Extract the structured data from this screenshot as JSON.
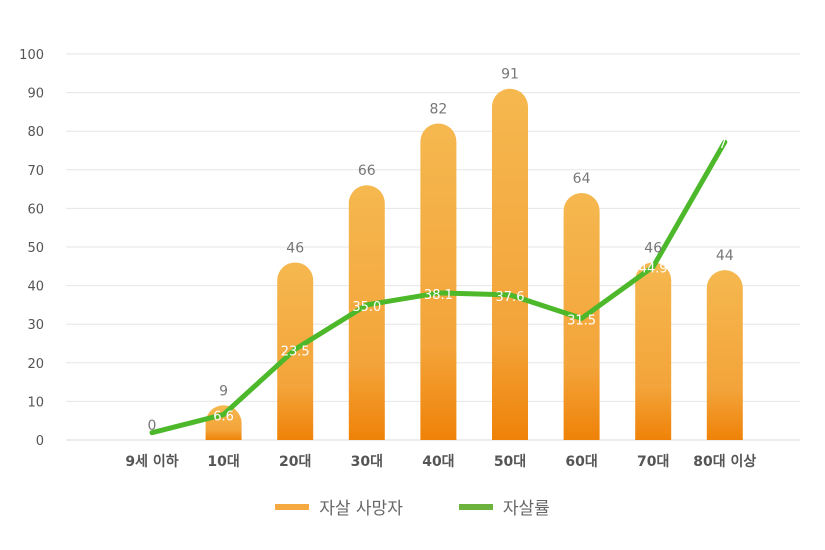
{
  "chart_data": {
    "type": "bar",
    "categories": [
      "9세 이하",
      "10대",
      "20대",
      "30대",
      "40대",
      "50대",
      "60대",
      "70대",
      "80대 이상"
    ],
    "ylim": [
      0,
      100
    ],
    "yticks": [
      0,
      10,
      20,
      30,
      40,
      50,
      60,
      70,
      80,
      90,
      100
    ],
    "grid": true,
    "legend_placement": "bottom",
    "series": [
      {
        "name": "자살 사망자",
        "type": "bar",
        "color": "#f5a623",
        "values": [
          0,
          9,
          46,
          66,
          82,
          91,
          64,
          46,
          44
        ],
        "labels": [
          "0",
          "9",
          "46",
          "66",
          "82",
          "91",
          "64",
          "46",
          "44"
        ]
      },
      {
        "name": "자살률",
        "type": "line",
        "color": "#4cb82a",
        "values": [
          1.9,
          6.6,
          23.5,
          35.0,
          38.1,
          37.6,
          31.5,
          44.9,
          77.2
        ],
        "labels": [
          null,
          "6.6",
          "23.5",
          "35.0",
          "38.1",
          "37.6",
          "31.5",
          "44.9",
          "77.2"
        ]
      }
    ]
  },
  "legend": {
    "bar_label": "자살 사망자",
    "line_label": "자살률"
  }
}
